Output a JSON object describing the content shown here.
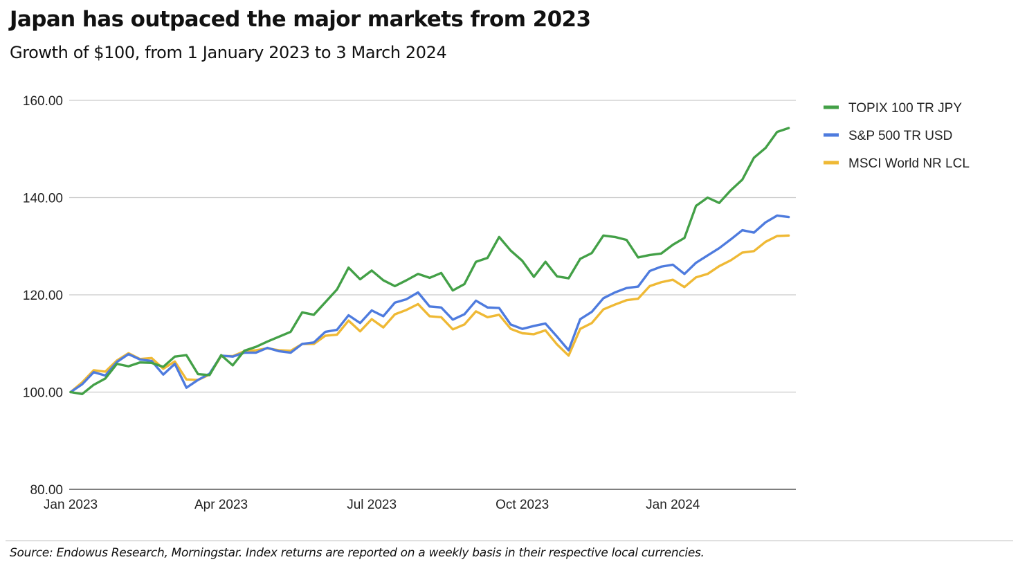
{
  "header": {
    "title": "Japan has outpaced the major markets from 2023",
    "subtitle": "Growth of $100, from 1 January 2023 to 3 March 2024"
  },
  "footer": {
    "source": "Source: Endowus Research, Morningstar. Index returns are reported on a weekly basis in their respective local currencies."
  },
  "chart_data": {
    "type": "line",
    "title": "Japan has outpaced the major markets from 2023",
    "subtitle": "Growth of $100, from 1 January 2023 to 3 March 2024",
    "xlabel": "",
    "ylabel": "",
    "ylim": [
      80,
      160
    ],
    "yticks": [
      80,
      100,
      120,
      140,
      160
    ],
    "ytick_labels": [
      "80.00",
      "100.00",
      "120.00",
      "140.00",
      "160.00"
    ],
    "xticks": [
      {
        "label": "Jan 2023",
        "week": 0
      },
      {
        "label": "Apr 2023",
        "week": 13
      },
      {
        "label": "Jul 2023",
        "week": 26
      },
      {
        "label": "Oct 2023",
        "week": 39
      },
      {
        "label": "Jan 2024",
        "week": 52
      }
    ],
    "x_weeks_range": [
      0,
      62.5
    ],
    "grid": true,
    "legend_position": "right",
    "series": [
      {
        "name": "TOPIX 100 TR JPY",
        "color": "#43a047",
        "values": [
          100.0,
          99.6,
          101.5,
          102.8,
          105.8,
          105.3,
          106.1,
          106.0,
          105.2,
          107.3,
          107.6,
          103.7,
          103.5,
          107.6,
          105.5,
          108.5,
          109.3,
          110.4,
          111.4,
          112.4,
          116.4,
          115.9,
          118.5,
          121.1,
          125.6,
          123.2,
          125.0,
          123.0,
          121.8,
          123.0,
          124.3,
          123.5,
          124.5,
          120.9,
          122.2,
          126.8,
          127.6,
          131.9,
          129.1,
          127.0,
          123.7,
          126.8,
          123.8,
          123.4,
          127.4,
          128.6,
          132.2,
          131.9,
          131.3,
          127.7,
          128.2,
          128.5,
          130.3,
          131.7,
          138.3,
          140.0,
          138.9,
          141.5,
          143.7,
          148.2,
          150.2,
          153.5,
          154.3
        ]
      },
      {
        "name": "S&P 500 TR USD",
        "color": "#4e7bde",
        "values": [
          100.0,
          101.6,
          104.1,
          103.4,
          106.2,
          107.8,
          106.7,
          106.4,
          103.6,
          105.8,
          100.9,
          102.5,
          103.8,
          107.5,
          107.3,
          108.1,
          108.1,
          109.1,
          108.4,
          108.1,
          109.9,
          110.2,
          112.4,
          112.8,
          115.8,
          114.2,
          116.8,
          115.6,
          118.4,
          119.1,
          120.5,
          117.6,
          117.4,
          114.9,
          116.0,
          118.8,
          117.4,
          117.3,
          113.9,
          113.0,
          113.6,
          114.1,
          111.4,
          108.6,
          115.0,
          116.5,
          119.3,
          120.5,
          121.4,
          121.7,
          124.9,
          125.8,
          126.2,
          124.3,
          126.6,
          128.1,
          129.6,
          131.4,
          133.3,
          132.8,
          134.9,
          136.3,
          136.0
        ]
      },
      {
        "name": "MSCI World NR LCL",
        "color": "#efb935",
        "values": [
          100.0,
          102.0,
          104.5,
          104.2,
          106.5,
          108.0,
          106.8,
          107.0,
          104.8,
          106.3,
          102.6,
          102.5,
          103.6,
          107.4,
          107.4,
          108.4,
          108.6,
          109.0,
          108.6,
          108.5,
          109.9,
          109.9,
          111.6,
          111.8,
          114.7,
          112.5,
          115.0,
          113.3,
          116.0,
          116.9,
          118.1,
          115.6,
          115.4,
          112.9,
          113.9,
          116.6,
          115.4,
          115.9,
          113.0,
          112.1,
          111.9,
          112.7,
          109.8,
          107.5,
          113.0,
          114.2,
          117.0,
          118.0,
          118.9,
          119.2,
          121.8,
          122.6,
          123.1,
          121.6,
          123.6,
          124.3,
          125.9,
          127.1,
          128.7,
          129.0,
          130.9,
          132.1,
          132.2
        ]
      }
    ]
  }
}
